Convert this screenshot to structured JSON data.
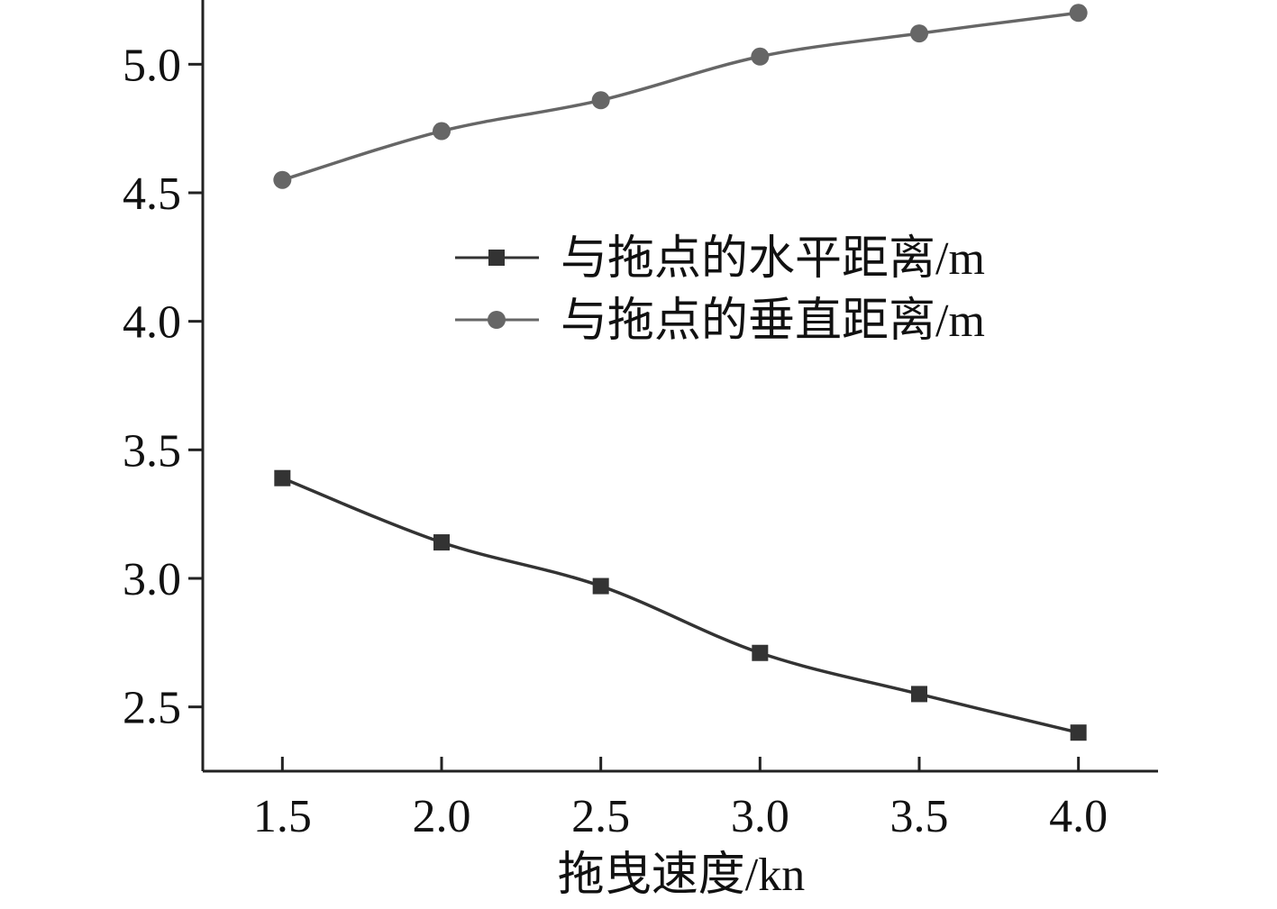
{
  "chart_data": {
    "type": "line",
    "title": "",
    "xlabel": "拖曳速度/kn",
    "ylabel": "",
    "x": [
      1.5,
      2.0,
      2.5,
      3.0,
      3.5,
      4.0
    ],
    "x_ticks": [
      "1.5",
      "2.0",
      "2.5",
      "3.0",
      "3.5",
      "4.0"
    ],
    "y_ticks": [
      "2.5",
      "3.0",
      "3.5",
      "4.0",
      "4.5",
      "5.0"
    ],
    "xlim": [
      1.25,
      4.25
    ],
    "ylim": [
      2.25,
      5.25
    ],
    "grid": false,
    "legend_position": "center-right",
    "series": [
      {
        "name": "与拖点的水平距离/m",
        "marker": "square",
        "color": "#333333",
        "values": [
          3.39,
          3.14,
          2.97,
          2.71,
          2.55,
          2.4
        ]
      },
      {
        "name": "与拖点的垂直距离/m",
        "marker": "circle",
        "color": "#666666",
        "values": [
          4.55,
          4.74,
          4.86,
          5.03,
          5.12,
          5.2
        ]
      }
    ]
  }
}
